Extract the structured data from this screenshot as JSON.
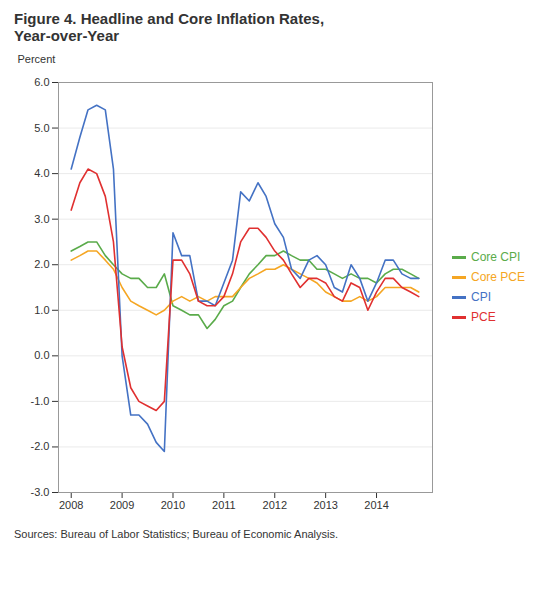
{
  "chart_data": {
    "type": "line",
    "title": "Figure 4. Headline and Core Inflation Rates,",
    "subtitle": "Year-over-Year",
    "y_label": "Percent",
    "source": "Sources: Bureau of Labor Statistics; Bureau of Economic Analysis.",
    "xlim": [
      2007.75,
      2015.1
    ],
    "xticks": [
      2008,
      2009,
      2010,
      2011,
      2012,
      2013,
      2014
    ],
    "ylim": [
      -3.0,
      6.0
    ],
    "yticks": [
      {
        "value": -3.0,
        "label": "-3.0"
      },
      {
        "value": -2.0,
        "label": "-2.0"
      },
      {
        "value": -1.0,
        "label": "-1.0"
      },
      {
        "value": 0.0,
        "label": "0.0"
      },
      {
        "value": 1.0,
        "label": "1.0"
      },
      {
        "value": 2.0,
        "label": "2.0"
      },
      {
        "value": 3.0,
        "label": "3.0"
      },
      {
        "value": 4.0,
        "label": "4.0"
      },
      {
        "value": 5.0,
        "label": "5.0"
      },
      {
        "value": 6.0,
        "label": "6.0"
      }
    ],
    "grid": true,
    "legend": "right",
    "x": [
      2008.0,
      2008.17,
      2008.33,
      2008.5,
      2008.67,
      2008.83,
      2009.0,
      2009.17,
      2009.33,
      2009.5,
      2009.67,
      2009.83,
      2010.0,
      2010.17,
      2010.33,
      2010.5,
      2010.67,
      2010.83,
      2011.0,
      2011.17,
      2011.33,
      2011.5,
      2011.67,
      2011.83,
      2012.0,
      2012.17,
      2012.33,
      2012.5,
      2012.67,
      2012.83,
      2013.0,
      2013.17,
      2013.33,
      2013.5,
      2013.67,
      2013.83,
      2014.0,
      2014.17,
      2014.33,
      2014.5,
      2014.67,
      2014.83
    ],
    "series": [
      {
        "name": "Core CPI",
        "color": "#5aab4a",
        "values": [
          2.3,
          2.4,
          2.5,
          2.5,
          2.2,
          2.0,
          1.8,
          1.7,
          1.7,
          1.5,
          1.5,
          1.8,
          1.1,
          1.0,
          0.9,
          0.9,
          0.6,
          0.8,
          1.1,
          1.2,
          1.5,
          1.8,
          2.0,
          2.2,
          2.2,
          2.3,
          2.2,
          2.1,
          2.1,
          1.9,
          1.9,
          1.8,
          1.7,
          1.8,
          1.7,
          1.7,
          1.6,
          1.8,
          1.9,
          1.9,
          1.8,
          1.7
        ]
      },
      {
        "name": "Core PCE",
        "color": "#f5a623",
        "values": [
          2.1,
          2.2,
          2.3,
          2.3,
          2.1,
          1.9,
          1.5,
          1.2,
          1.1,
          1.0,
          0.9,
          1.0,
          1.2,
          1.3,
          1.2,
          1.3,
          1.2,
          1.3,
          1.3,
          1.3,
          1.5,
          1.7,
          1.8,
          1.9,
          1.9,
          2.0,
          1.9,
          1.8,
          1.7,
          1.6,
          1.4,
          1.3,
          1.2,
          1.2,
          1.3,
          1.2,
          1.3,
          1.5,
          1.5,
          1.5,
          1.5,
          1.4
        ]
      },
      {
        "name": "CPI",
        "color": "#4472c4",
        "values": [
          4.1,
          4.8,
          5.4,
          5.5,
          5.4,
          4.1,
          0.0,
          -1.3,
          -1.3,
          -1.5,
          -1.9,
          -2.1,
          2.7,
          2.2,
          2.2,
          1.2,
          1.2,
          1.1,
          1.6,
          2.1,
          3.6,
          3.4,
          3.8,
          3.5,
          2.9,
          2.6,
          1.9,
          1.7,
          2.1,
          2.2,
          2.0,
          1.5,
          1.4,
          2.0,
          1.7,
          1.2,
          1.6,
          2.1,
          2.1,
          1.8,
          1.7,
          1.7
        ]
      },
      {
        "name": "PCE",
        "color": "#e03030",
        "values": [
          3.2,
          3.8,
          4.1,
          4.0,
          3.5,
          2.5,
          0.2,
          -0.7,
          -1.0,
          -1.1,
          -1.2,
          -1.0,
          2.1,
          2.1,
          1.8,
          1.2,
          1.1,
          1.1,
          1.3,
          1.8,
          2.5,
          2.8,
          2.8,
          2.6,
          2.3,
          2.1,
          1.8,
          1.5,
          1.7,
          1.7,
          1.6,
          1.3,
          1.2,
          1.6,
          1.5,
          1.0,
          1.4,
          1.7,
          1.7,
          1.5,
          1.4,
          1.3
        ]
      }
    ]
  }
}
